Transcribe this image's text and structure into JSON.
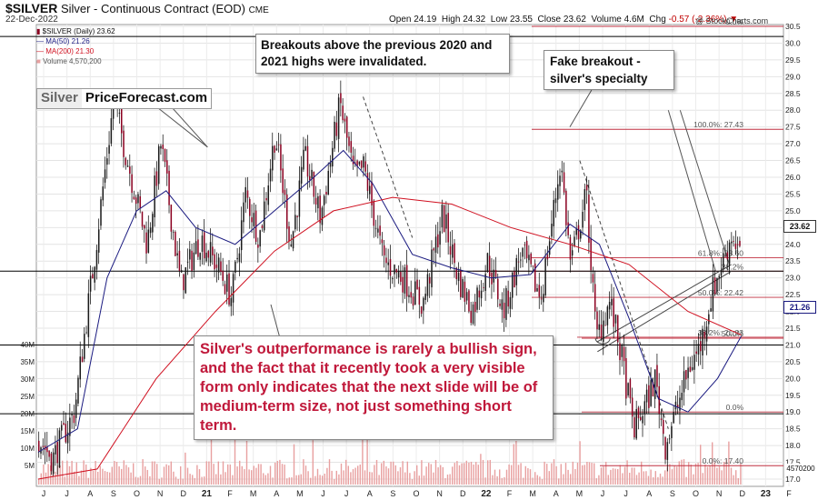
{
  "header": {
    "symbol": "$SILVER",
    "name": "Silver - Continuous Contract (EOD)",
    "exchange": "CME",
    "date": "22-Dec-2022",
    "open_label": "Open",
    "open": "24.19",
    "high_label": "High",
    "high": "24.32",
    "low_label": "Low",
    "low": "23.55",
    "close_label": "Close",
    "close": "23.62",
    "volume_label": "Volume",
    "volume": "4.6M",
    "chg_label": "Chg",
    "chg": "-0.57 (-2.36%)",
    "credit": "@ StockCharts.com"
  },
  "legend": {
    "price": "$SILVER (Daily) 23.62",
    "ma50": "MA(50) 21.26",
    "ma200": "MA(200) 21.30",
    "volume": "Volume 4,570,200"
  },
  "logo": {
    "part1": "Silver",
    "part2": "PriceForecast.com"
  },
  "callouts": {
    "top": "Breakouts above the previous 2020 and 2021 highs were invalidated.",
    "fake": "Fake breakout - silver's specialty",
    "main": "Silver's outperformance is rarely a bullish sign, and the fact that it recently took a very visible form only indicates that the next slide will be of medium-term size, not just something short term."
  },
  "price_labels": {
    "close": "23.62",
    "ma50": "21.26"
  },
  "volume_readout": "4570200",
  "colors": {
    "ma50": "#1a1a80",
    "ma200": "#d01020",
    "candle": "#8b0020",
    "volume": "#e8a0a0",
    "fib": "#c03040",
    "callout_text": "#c0183a"
  },
  "chart_data": {
    "type": "candlestick",
    "title": "$SILVER - Silver - Continuous Contract (EOD)",
    "ylim": [
      17.0,
      30.5
    ],
    "y_ticks": [
      "17.0",
      "17.5",
      "18.0",
      "18.5",
      "19.0",
      "19.5",
      "20.0",
      "20.5",
      "21.0",
      "21.5",
      "22.0",
      "22.5",
      "23.0",
      "23.5",
      "24.0",
      "24.5",
      "25.0",
      "25.5",
      "26.0",
      "26.5",
      "27.0",
      "27.5",
      "28.0",
      "28.5",
      "29.0",
      "29.5",
      "30.0",
      "30.5"
    ],
    "x_ticks": [
      "J",
      "J",
      "A",
      "S",
      "O",
      "N",
      "D",
      "21",
      "F",
      "M",
      "A",
      "M",
      "J",
      "J",
      "A",
      "S",
      "O",
      "N",
      "D",
      "22",
      "F",
      "M",
      "A",
      "M",
      "J",
      "J",
      "A",
      "S",
      "O",
      "N",
      "D",
      "23",
      "F"
    ],
    "volume_ticks": [
      "5M",
      "10M",
      "15M",
      "20M",
      "25M",
      "30M",
      "35M",
      "40M"
    ],
    "keypoints": [
      {
        "t": 0,
        "price": 18.2
      },
      {
        "t": 7,
        "price": 17.6
      },
      {
        "t": 18,
        "price": 19.0
      },
      {
        "t": 28,
        "price": 23.5
      },
      {
        "t": 38,
        "price": 28.3
      },
      {
        "t": 45,
        "price": 26.5
      },
      {
        "t": 55,
        "price": 24.0
      },
      {
        "t": 62,
        "price": 27.0
      },
      {
        "t": 72,
        "price": 22.8
      },
      {
        "t": 82,
        "price": 24.2
      },
      {
        "t": 92,
        "price": 23.2
      },
      {
        "t": 98,
        "price": 22.4
      },
      {
        "t": 105,
        "price": 25.5
      },
      {
        "t": 112,
        "price": 24.2
      },
      {
        "t": 120,
        "price": 27.3
      },
      {
        "t": 128,
        "price": 24.0
      },
      {
        "t": 135,
        "price": 26.6
      },
      {
        "t": 143,
        "price": 24.8
      },
      {
        "t": 153,
        "price": 28.2
      },
      {
        "t": 160,
        "price": 26.0
      },
      {
        "t": 165,
        "price": 26.3
      },
      {
        "t": 175,
        "price": 23.5
      },
      {
        "t": 185,
        "price": 23.0
      },
      {
        "t": 195,
        "price": 22.2
      },
      {
        "t": 205,
        "price": 24.9
      },
      {
        "t": 213,
        "price": 23.0
      },
      {
        "t": 220,
        "price": 22.0
      },
      {
        "t": 228,
        "price": 23.5
      },
      {
        "t": 236,
        "price": 22.0
      },
      {
        "t": 245,
        "price": 23.8
      },
      {
        "t": 255,
        "price": 22.4
      },
      {
        "t": 265,
        "price": 26.5
      },
      {
        "t": 270,
        "price": 23.4
      },
      {
        "t": 278,
        "price": 25.5
      },
      {
        "t": 283,
        "price": 21.2
      },
      {
        "t": 290,
        "price": 22.3
      },
      {
        "t": 296,
        "price": 20.6
      },
      {
        "t": 302,
        "price": 18.5
      },
      {
        "t": 308,
        "price": 19.2
      },
      {
        "t": 313,
        "price": 20.0
      },
      {
        "t": 318,
        "price": 18.0
      },
      {
        "t": 325,
        "price": 19.3
      },
      {
        "t": 330,
        "price": 20.3
      },
      {
        "t": 336,
        "price": 21.0
      },
      {
        "t": 342,
        "price": 22.6
      },
      {
        "t": 348,
        "price": 23.6
      },
      {
        "t": 352,
        "price": 24.3
      },
      {
        "t": 357,
        "price": 23.62
      }
    ],
    "series": [
      {
        "name": "MA(50)",
        "points": [
          {
            "t": 0,
            "price": 17.8
          },
          {
            "t": 20,
            "price": 18.5
          },
          {
            "t": 35,
            "price": 23.0
          },
          {
            "t": 50,
            "price": 25.0
          },
          {
            "t": 65,
            "price": 25.6
          },
          {
            "t": 80,
            "price": 24.5
          },
          {
            "t": 100,
            "price": 24.0
          },
          {
            "t": 120,
            "price": 25.0
          },
          {
            "t": 140,
            "price": 26.0
          },
          {
            "t": 155,
            "price": 26.8
          },
          {
            "t": 170,
            "price": 25.8
          },
          {
            "t": 190,
            "price": 23.7
          },
          {
            "t": 210,
            "price": 23.3
          },
          {
            "t": 230,
            "price": 23.0
          },
          {
            "t": 250,
            "price": 23.1
          },
          {
            "t": 270,
            "price": 24.6
          },
          {
            "t": 285,
            "price": 24.0
          },
          {
            "t": 300,
            "price": 21.8
          },
          {
            "t": 315,
            "price": 19.4
          },
          {
            "t": 330,
            "price": 19.0
          },
          {
            "t": 345,
            "price": 20.0
          },
          {
            "t": 357,
            "price": 21.26
          }
        ]
      },
      {
        "name": "MA(200)",
        "points": [
          {
            "t": 0,
            "price": 17.0
          },
          {
            "t": 30,
            "price": 17.3
          },
          {
            "t": 60,
            "price": 20.0
          },
          {
            "t": 90,
            "price": 22.0
          },
          {
            "t": 120,
            "price": 23.8
          },
          {
            "t": 150,
            "price": 25.0
          },
          {
            "t": 180,
            "price": 25.4
          },
          {
            "t": 210,
            "price": 25.2
          },
          {
            "t": 240,
            "price": 24.5
          },
          {
            "t": 270,
            "price": 24.0
          },
          {
            "t": 300,
            "price": 23.4
          },
          {
            "t": 330,
            "price": 22.0
          },
          {
            "t": 357,
            "price": 21.3
          }
        ]
      }
    ],
    "fib_levels": [
      {
        "label": "0.0%",
        "price": 30.5
      },
      {
        "label": "100.0%: 27.43",
        "price": 27.43
      },
      {
        "label": "61.8%: 23.60",
        "price": 23.6
      },
      {
        "label": "38.2%",
        "price": 23.2
      },
      {
        "label": "50.0%: 22.42",
        "price": 22.42
      },
      {
        "label": "38.2%: 21.23",
        "price": 21.23
      },
      {
        "label": "50.0%",
        "price": 21.2
      },
      {
        "label": "0.0%",
        "price": 19.0
      },
      {
        "label": "0.0%: 17.40",
        "price": 17.4
      }
    ],
    "hlines": [
      30.2,
      23.2,
      21.0,
      18.95
    ]
  }
}
